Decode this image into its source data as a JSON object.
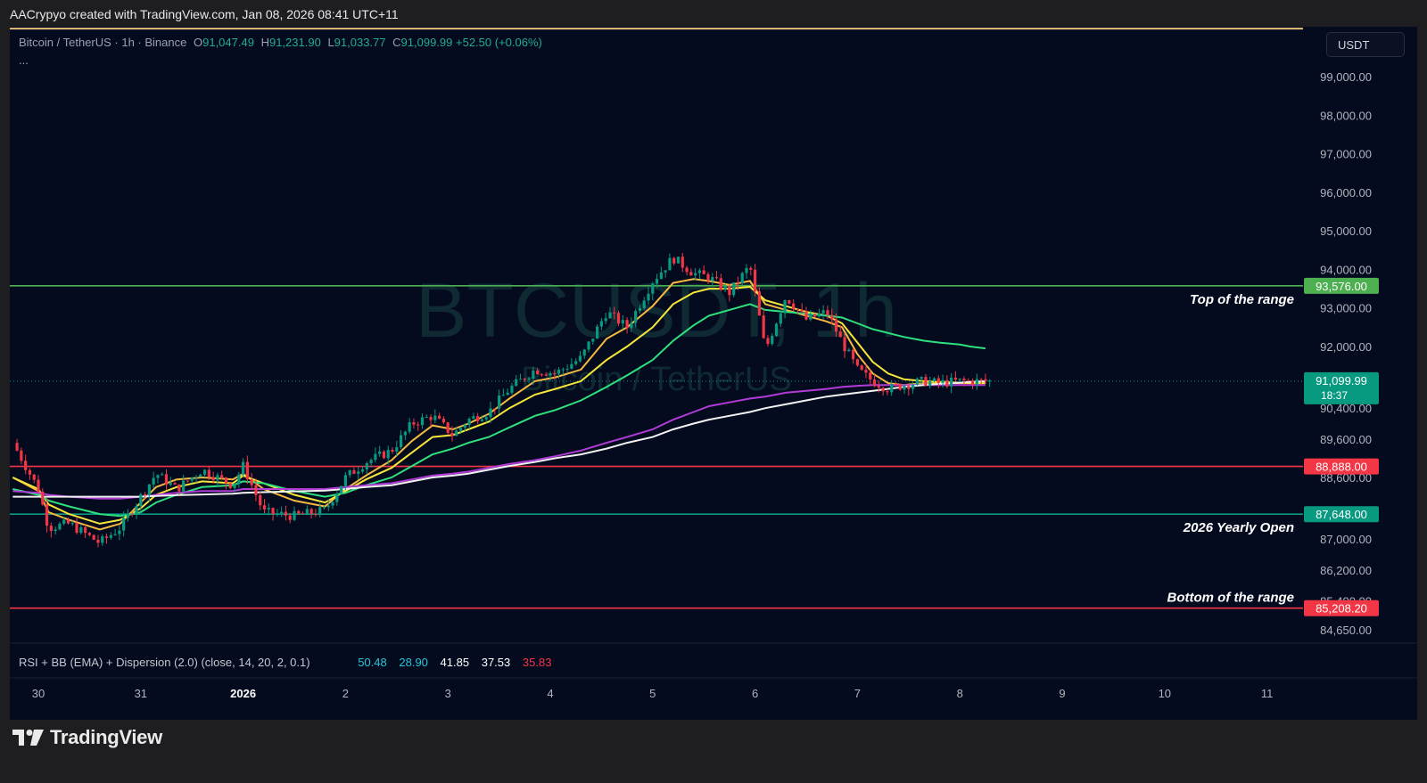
{
  "top_caption": "AACrypyo created with TradingView.com, Jan 08, 2026 08:41 UTC+11",
  "symbol": {
    "name": "Bitcoin / TetherUS · 1h · Binance",
    "open_label": "O",
    "open": "91,047.49",
    "high_label": "H",
    "high": "91,231.90",
    "low_label": "L",
    "low": "91,033.77",
    "close_label": "C",
    "close": "91,099.99",
    "change": "+52.50 (+0.06%)",
    "more": "..."
  },
  "currency": "USDT",
  "watermark": {
    "ticker": "BTCUSDT, 1h",
    "name": "Bitcoin / TetherUS"
  },
  "indicator": {
    "name": "RSI + BB (EMA) + Dispersion (2.0) (close, 14, 20, 2, 0.1)",
    "values": [
      {
        "v": "50.48",
        "color": "#26c6da"
      },
      {
        "v": "28.90",
        "color": "#26c6da"
      },
      {
        "v": "41.85",
        "color": "#ffffff"
      },
      {
        "v": "37.53",
        "color": "#ffffff"
      },
      {
        "v": "35.83",
        "color": "#f23645"
      }
    ]
  },
  "brand": "TradingView",
  "colors": {
    "up": "#089981",
    "down": "#f23645",
    "bg": "#050b1f"
  },
  "chart_data": {
    "type": "line",
    "title": "Bitcoin / TetherUS · 1h · Binance",
    "ylim": [
      84300,
      100300
    ],
    "y_ticks": [
      "99,000.00",
      "98,000.00",
      "97,000.00",
      "96,000.00",
      "95,000.00",
      "94,000.00",
      "93,000.00",
      "92,000.00",
      "90,400.00",
      "89,600.00",
      "88,600.00",
      "87,000.00",
      "86,200.00",
      "85,400.00",
      "84,650.00"
    ],
    "y_tick_values": [
      99000,
      98000,
      97000,
      96000,
      95000,
      94000,
      93000,
      92000,
      90400,
      89600,
      88600,
      87000,
      86200,
      85400,
      84650
    ],
    "x_ticks": [
      {
        "label": "30",
        "day": 0,
        "bold": false
      },
      {
        "label": "31",
        "day": 1,
        "bold": false
      },
      {
        "label": "2026",
        "day": 2,
        "bold": true
      },
      {
        "label": "2",
        "day": 3,
        "bold": false
      },
      {
        "label": "3",
        "day": 4,
        "bold": false
      },
      {
        "label": "4",
        "day": 5,
        "bold": false
      },
      {
        "label": "5",
        "day": 6,
        "bold": false
      },
      {
        "label": "6",
        "day": 7,
        "bold": false
      },
      {
        "label": "7",
        "day": 8,
        "bold": false
      },
      {
        "label": "8",
        "day": 9,
        "bold": false
      },
      {
        "label": "9",
        "day": 10,
        "bold": false
      },
      {
        "label": "10",
        "day": 11,
        "bold": false
      },
      {
        "label": "11",
        "day": 12,
        "bold": false
      }
    ],
    "levels": [
      {
        "value": 93576,
        "label": "93,576.00",
        "color": "#4caf50",
        "note": "Top of the range"
      },
      {
        "value": 88888,
        "label": "88,888.00",
        "color": "#f23645",
        "note": ""
      },
      {
        "value": 87648,
        "label": "87,648.00",
        "color": "#089981",
        "note": "2026 Yearly Open"
      },
      {
        "value": 85208.2,
        "label": "85,208.20",
        "color": "#f23645",
        "note": "Bottom of the range"
      }
    ],
    "top_line": {
      "value": 100250,
      "color": "#e6c27a"
    },
    "last_price": {
      "value": 91099.99,
      "label": "91,099.99",
      "countdown": "18:37",
      "color": "#089981"
    },
    "close_series": {
      "x_day": [
        -0.25,
        0,
        0.1,
        0.3,
        0.6,
        0.8,
        1.0,
        1.15,
        1.35,
        1.6,
        1.9,
        2.0,
        2.2,
        2.5,
        2.8,
        3.0,
        3.2,
        3.45,
        3.65,
        3.85,
        4.05,
        4.2,
        4.4,
        4.6,
        4.85,
        5.05,
        5.3,
        5.55,
        5.75,
        6.0,
        6.2,
        6.4,
        6.55,
        6.75,
        6.95,
        7.1,
        7.3,
        7.5,
        7.7,
        7.85,
        8.0,
        8.15,
        8.3,
        8.45,
        8.65,
        8.8,
        9.0,
        9.1,
        9.25
      ],
      "values": [
        89500,
        88300,
        87300,
        87400,
        86900,
        87300,
        88100,
        88700,
        88300,
        88800,
        88400,
        88900,
        87700,
        87600,
        87750,
        88600,
        89000,
        89300,
        90000,
        90200,
        89700,
        90100,
        90300,
        90900,
        91400,
        91300,
        91700,
        92900,
        92500,
        93700,
        94300,
        93900,
        93800,
        93400,
        94100,
        91900,
        93300,
        92700,
        92900,
        92100,
        91400,
        91100,
        90900,
        91000,
        91100,
        91050,
        91099.99,
        91099.99,
        91099.99
      ]
    },
    "ema_series": [
      {
        "name": "",
        "color": "#f5b942",
        "values": [
          88600,
          88250,
          87700,
          87500,
          87250,
          87400,
          87950,
          88350,
          88550,
          88600,
          88550,
          88700,
          88300,
          88000,
          87850,
          88300,
          88650,
          89050,
          89550,
          89950,
          89850,
          90000,
          90250,
          90650,
          91100,
          91200,
          91400,
          92200,
          92500,
          93050,
          93650,
          93750,
          93700,
          93600,
          93700,
          93100,
          92950,
          92800,
          92650,
          92500,
          91800,
          91300,
          91050,
          91000,
          91050,
          91050,
          91050,
          91050,
          91050
        ]
      },
      {
        "name": "",
        "color": "#f7e73a",
        "values": [
          88600,
          88300,
          87900,
          87650,
          87400,
          87500,
          87800,
          88150,
          88350,
          88500,
          88450,
          88650,
          88450,
          88150,
          87950,
          88250,
          88550,
          88850,
          89250,
          89650,
          89700,
          89850,
          90050,
          90400,
          90750,
          90900,
          91100,
          91650,
          92000,
          92500,
          93100,
          93400,
          93500,
          93500,
          93550,
          93200,
          93050,
          92900,
          92800,
          92600,
          92100,
          91600,
          91300,
          91150,
          91100,
          91080,
          91060,
          91050,
          91050
        ]
      },
      {
        "name": "",
        "color": "#2ee07e",
        "values": [
          88300,
          88150,
          88000,
          87850,
          87650,
          87600,
          87700,
          87950,
          88150,
          88350,
          88400,
          88500,
          88450,
          88250,
          88100,
          88200,
          88400,
          88600,
          88900,
          89200,
          89350,
          89500,
          89650,
          89900,
          90200,
          90350,
          90600,
          90950,
          91250,
          91650,
          92150,
          92550,
          92800,
          92950,
          93100,
          92950,
          92900,
          92850,
          92800,
          92750,
          92600,
          92450,
          92350,
          92250,
          92150,
          92100,
          92050,
          92000,
          91950
        ]
      },
      {
        "name": "",
        "color": "#b13bd6",
        "values": [
          88250,
          88200,
          88150,
          88100,
          88050,
          88050,
          88100,
          88150,
          88200,
          88250,
          88250,
          88300,
          88300,
          88300,
          88300,
          88350,
          88400,
          88450,
          88550,
          88650,
          88700,
          88750,
          88850,
          88950,
          89050,
          89150,
          89300,
          89500,
          89650,
          89850,
          90100,
          90300,
          90450,
          90550,
          90650,
          90700,
          90800,
          90850,
          90900,
          90950,
          90980,
          91000,
          91000,
          91000,
          91000,
          91000,
          91000,
          91000,
          91000
        ]
      },
      {
        "name": "",
        "color": "#f2f2f2",
        "values": [
          88100,
          88100,
          88100,
          88100,
          88100,
          88100,
          88100,
          88120,
          88140,
          88160,
          88180,
          88200,
          88220,
          88240,
          88260,
          88300,
          88350,
          88400,
          88500,
          88600,
          88650,
          88700,
          88800,
          88900,
          89000,
          89100,
          89200,
          89350,
          89500,
          89650,
          89850,
          90000,
          90100,
          90200,
          90300,
          90400,
          90500,
          90600,
          90700,
          90750,
          90800,
          90850,
          90900,
          90950,
          91000,
          91030,
          91060,
          91080,
          91100
        ]
      }
    ]
  }
}
